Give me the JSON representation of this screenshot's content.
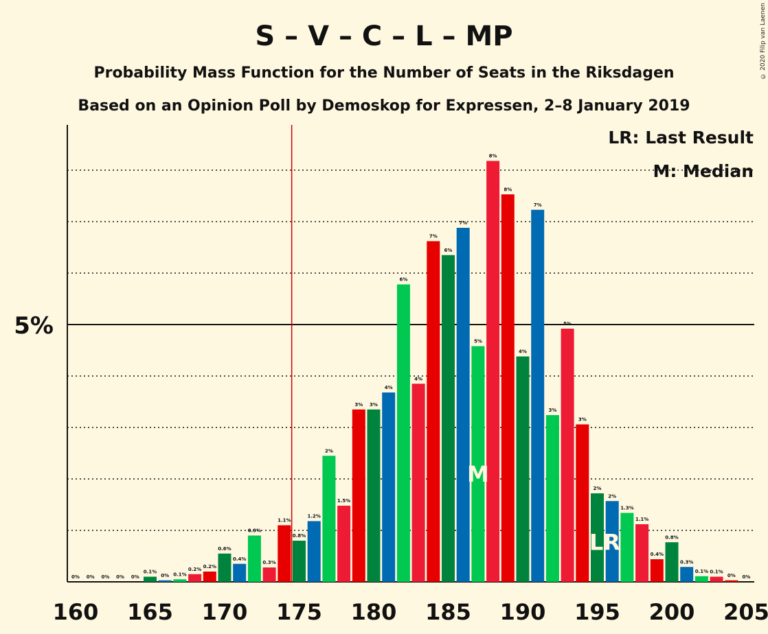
{
  "header": {
    "title": "S – V – C – L – MP",
    "subtitle1": "Probability Mass Function for the Number of Seats in the Riksdagen",
    "subtitle2": "Based on an Opinion Poll by Demoskop for Expressen, 2–8 January 2019",
    "copyright": "© 2020 Filip van Laenen"
  },
  "legend": {
    "lr": "LR: Last Result",
    "m": "M: Median",
    "placement": "top-right"
  },
  "colors": {
    "dark_green": "#00843d",
    "green": "#00c850",
    "blue": "#006ab3",
    "pink_red": "#ed1b34",
    "red": "#e60000",
    "last_result_line": "#cc0000",
    "background": "#fff8e1"
  },
  "chart_data": {
    "type": "bar",
    "title": "S – V – C – L – MP",
    "xlabel": "",
    "ylabel": "",
    "x": [
      160,
      161,
      162,
      163,
      164,
      165,
      166,
      167,
      168,
      169,
      170,
      171,
      172,
      173,
      174,
      175,
      176,
      177,
      178,
      179,
      180,
      181,
      182,
      183,
      184,
      185,
      186,
      187,
      188,
      189,
      190,
      191,
      192,
      193,
      194,
      195,
      196,
      197,
      198,
      199,
      200,
      201,
      202,
      203,
      204,
      205
    ],
    "values": [
      0,
      0,
      0,
      0,
      0,
      0.1,
      0.03,
      0.05,
      0.15,
      0.2,
      0.55,
      0.35,
      0.9,
      0.28,
      1.1,
      0.8,
      1.18,
      2.45,
      1.48,
      3.35,
      3.35,
      3.68,
      5.78,
      3.85,
      6.62,
      6.35,
      6.88,
      4.58,
      8.18,
      7.53,
      4.38,
      7.23,
      3.24,
      4.92,
      3.06,
      1.72,
      1.57,
      1.34,
      1.12,
      0.44,
      0.77,
      0.29,
      0.11,
      0.1,
      0.03,
      0
    ],
    "labels": [
      "0%",
      "0%",
      "0%",
      "0%",
      "0%",
      "0.1%",
      "0%",
      "0.1%",
      "0.2%",
      "0.2%",
      "0.6%",
      "0.4%",
      "0.9%",
      "0.3%",
      "1.1%",
      "0.8%",
      "1.2%",
      "2%",
      "1.5%",
      "3%",
      "3%",
      "4%",
      "6%",
      "4%",
      "7%",
      "6%",
      "7%",
      "5%",
      "8%",
      "8%",
      "4%",
      "7%",
      "3%",
      "5%",
      "3%",
      "2%",
      "2%",
      "1.3%",
      "1.1%",
      "0.4%",
      "0.8%",
      "0.3%",
      "0.1%",
      "0.1%",
      "0%",
      "0%"
    ],
    "color_cycle": [
      "#00843d",
      "#006ab3",
      "#00c850",
      "#ed1b34",
      "#e60000"
    ],
    "x_ticks": [
      "160",
      "165",
      "170",
      "175",
      "180",
      "185",
      "190",
      "195",
      "200",
      "205"
    ],
    "y_tick_label": "5%",
    "ylim": [
      0,
      8.9
    ],
    "last_result": 175,
    "median": 187,
    "median_marker": "M",
    "last_result_marker": "LR",
    "grid": "dotted"
  }
}
